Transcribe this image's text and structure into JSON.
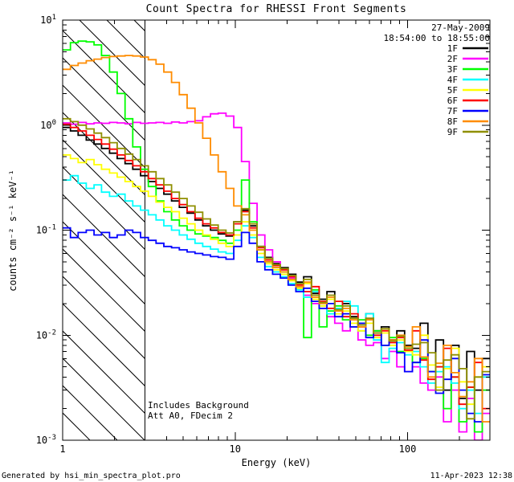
{
  "title": "Count Spectra for RHESSI Front Segments",
  "header": {
    "date": "27-May-2009",
    "time_range": "18:54:00 to 18:55:00"
  },
  "annotations": {
    "line1": "Includes Background",
    "line2": "Att A0, FDecim 2"
  },
  "footer": {
    "left": "Generated by hsi_min_spectra_plot.pro",
    "right": "11-Apr-2023 12:38"
  },
  "chart_data": {
    "type": "line",
    "mode": "histogram-step",
    "background": "#FFFFFF",
    "axis_color": "#000000",
    "legend_position": "top-right",
    "x_axis": {
      "label": "Energy (keV)",
      "scale": "log",
      "range": [
        1,
        300
      ],
      "ticks": [
        1,
        10,
        100
      ]
    },
    "y_axis": {
      "label": "counts cm⁻² s⁻¹ keV⁻¹",
      "scale": "log",
      "range": [
        0.001,
        10
      ],
      "tick_exponents": [
        1,
        0,
        -1,
        -2,
        -3
      ]
    },
    "excluded_region": {
      "from": 1,
      "to": 3,
      "style": "hatched"
    },
    "bin_edges": [
      1.0,
      1.11,
      1.23,
      1.37,
      1.52,
      1.68,
      1.87,
      2.07,
      2.3,
      2.55,
      2.83,
      3.14,
      3.48,
      3.86,
      4.28,
      4.75,
      5.27,
      5.85,
      6.49,
      7.2,
      7.98,
      8.85,
      9.82,
      10.89,
      12.08,
      13.4,
      14.87,
      16.49,
      18.29,
      20.29,
      22.51,
      24.97,
      27.7,
      30.72,
      34.08,
      37.8,
      41.93,
      46.51,
      51.59,
      57.22,
      63.47,
      70.41,
      78.1,
      86.63,
      96.09,
      106.59,
      118.23,
      131.14,
      145.46,
      161.35,
      178.98,
      198.52,
      220.2,
      244.25,
      270.93,
      300.0
    ],
    "series": [
      {
        "name": "1F",
        "color": "#000000",
        "values": [
          0.95,
          0.88,
          0.8,
          0.72,
          0.66,
          0.6,
          0.54,
          0.48,
          0.43,
          0.38,
          0.33,
          0.29,
          0.25,
          0.22,
          0.19,
          0.165,
          0.145,
          0.125,
          0.11,
          0.1,
          0.092,
          0.088,
          0.12,
          0.155,
          0.11,
          0.07,
          0.055,
          0.048,
          0.044,
          0.038,
          0.032,
          0.036,
          0.025,
          0.022,
          0.026,
          0.018,
          0.02,
          0.015,
          0.013,
          0.016,
          0.011,
          0.012,
          0.009,
          0.011,
          0.008,
          0.0075,
          0.013,
          0.0045,
          0.009,
          0.003,
          0.008,
          0.0025,
          0.007,
          0.003,
          0.006
        ]
      },
      {
        "name": "2F",
        "color": "#FF00FF",
        "values": [
          1.05,
          1.02,
          1.06,
          1.03,
          1.05,
          1.04,
          1.06,
          1.05,
          1.03,
          1.06,
          1.04,
          1.05,
          1.06,
          1.04,
          1.07,
          1.05,
          1.08,
          1.1,
          1.2,
          1.28,
          1.3,
          1.22,
          0.95,
          0.45,
          0.18,
          0.09,
          0.065,
          0.05,
          0.042,
          0.035,
          0.028,
          0.024,
          0.02,
          0.018,
          0.015,
          0.013,
          0.011,
          0.012,
          0.009,
          0.008,
          0.0085,
          0.006,
          0.007,
          0.005,
          0.0045,
          0.005,
          0.0035,
          0.003,
          0.004,
          0.0015,
          0.003,
          0.0012,
          0.0025,
          0.001,
          0.0018
        ]
      },
      {
        "name": "3F",
        "color": "#00FF00",
        "values": [
          5.2,
          6.1,
          6.3,
          6.2,
          5.8,
          4.6,
          3.2,
          2.0,
          1.15,
          0.62,
          0.38,
          0.26,
          0.19,
          0.15,
          0.125,
          0.11,
          0.1,
          0.092,
          0.088,
          0.085,
          0.08,
          0.075,
          0.1,
          0.3,
          0.12,
          0.065,
          0.05,
          0.044,
          0.04,
          0.034,
          0.028,
          0.0095,
          0.027,
          0.012,
          0.017,
          0.019,
          0.014,
          0.012,
          0.014,
          0.01,
          0.011,
          0.008,
          0.0095,
          0.007,
          0.0075,
          0.0055,
          0.006,
          0.0045,
          0.005,
          0.002,
          0.004,
          0.0015,
          0.0032,
          0.0012,
          0.003
        ]
      },
      {
        "name": "4F",
        "color": "#00FFFF",
        "values": [
          0.3,
          0.33,
          0.28,
          0.25,
          0.27,
          0.23,
          0.21,
          0.22,
          0.19,
          0.17,
          0.155,
          0.14,
          0.125,
          0.11,
          0.1,
          0.09,
          0.082,
          0.075,
          0.07,
          0.066,
          0.062,
          0.06,
          0.08,
          0.11,
          0.085,
          0.055,
          0.045,
          0.04,
          0.036,
          0.031,
          0.027,
          0.023,
          0.026,
          0.019,
          0.016,
          0.018,
          0.021,
          0.019,
          0.011,
          0.016,
          0.009,
          0.0055,
          0.0075,
          0.0085,
          0.0065,
          0.007,
          0.005,
          0.0035,
          0.0045,
          0.005,
          0.0035,
          0.002,
          0.003,
          0.0018,
          0.004
        ]
      },
      {
        "name": "5F",
        "color": "#FFFF00",
        "values": [
          0.52,
          0.48,
          0.44,
          0.47,
          0.42,
          0.38,
          0.35,
          0.32,
          0.29,
          0.26,
          0.235,
          0.21,
          0.185,
          0.165,
          0.15,
          0.13,
          0.115,
          0.1,
          0.09,
          0.082,
          0.075,
          0.07,
          0.09,
          0.12,
          0.09,
          0.06,
          0.048,
          0.042,
          0.038,
          0.033,
          0.028,
          0.031,
          0.022,
          0.019,
          0.022,
          0.016,
          0.017,
          0.013,
          0.011,
          0.013,
          0.0095,
          0.0105,
          0.008,
          0.009,
          0.007,
          0.0065,
          0.01,
          0.0052,
          0.0032,
          0.0048,
          0.0075,
          0.0036,
          0.0022,
          0.004,
          0.005
        ]
      },
      {
        "name": "6F",
        "color": "#FF0000",
        "values": [
          1.02,
          0.95,
          0.88,
          0.8,
          0.73,
          0.66,
          0.59,
          0.52,
          0.46,
          0.41,
          0.36,
          0.31,
          0.27,
          0.235,
          0.2,
          0.175,
          0.15,
          0.13,
          0.115,
          0.105,
          0.095,
          0.09,
          0.115,
          0.15,
          0.105,
          0.068,
          0.052,
          0.046,
          0.042,
          0.036,
          0.03,
          0.026,
          0.029,
          0.021,
          0.018,
          0.021,
          0.015,
          0.016,
          0.012,
          0.014,
          0.01,
          0.011,
          0.0085,
          0.0095,
          0.0072,
          0.011,
          0.0058,
          0.0038,
          0.005,
          0.0075,
          0.004,
          0.0022,
          0.0032,
          0.0055,
          0.002
        ]
      },
      {
        "name": "7F",
        "color": "#0000FF",
        "values": [
          0.105,
          0.085,
          0.095,
          0.1,
          0.09,
          0.095,
          0.085,
          0.09,
          0.1,
          0.095,
          0.085,
          0.08,
          0.075,
          0.07,
          0.068,
          0.065,
          0.062,
          0.06,
          0.058,
          0.056,
          0.055,
          0.053,
          0.07,
          0.095,
          0.075,
          0.05,
          0.042,
          0.038,
          0.035,
          0.03,
          0.026,
          0.028,
          0.021,
          0.018,
          0.02,
          0.015,
          0.016,
          0.012,
          0.013,
          0.0095,
          0.0105,
          0.008,
          0.009,
          0.0068,
          0.0045,
          0.0055,
          0.009,
          0.0045,
          0.0028,
          0.0038,
          0.006,
          0.003,
          0.0018,
          0.0015,
          0.0042
        ]
      },
      {
        "name": "8F",
        "color": "#FF8C00",
        "values": [
          3.4,
          3.7,
          3.9,
          4.1,
          4.25,
          4.4,
          4.5,
          4.55,
          4.6,
          4.55,
          4.45,
          4.2,
          3.8,
          3.2,
          2.55,
          1.95,
          1.45,
          1.05,
          0.75,
          0.52,
          0.36,
          0.25,
          0.17,
          0.14,
          0.1,
          0.065,
          0.05,
          0.044,
          0.04,
          0.034,
          0.029,
          0.032,
          0.023,
          0.02,
          0.023,
          0.017,
          0.018,
          0.014,
          0.012,
          0.014,
          0.0105,
          0.0115,
          0.009,
          0.01,
          0.0078,
          0.012,
          0.0062,
          0.004,
          0.0054,
          0.008,
          0.0044,
          0.0026,
          0.0036,
          0.006,
          0.0015
        ]
      },
      {
        "name": "9F",
        "color": "#8F8F00",
        "values": [
          1.15,
          1.08,
          1.0,
          0.92,
          0.84,
          0.76,
          0.68,
          0.6,
          0.53,
          0.47,
          0.41,
          0.36,
          0.31,
          0.27,
          0.23,
          0.2,
          0.17,
          0.148,
          0.128,
          0.112,
          0.1,
          0.094,
          0.12,
          0.16,
          0.115,
          0.07,
          0.054,
          0.047,
          0.043,
          0.037,
          0.031,
          0.034,
          0.024,
          0.0205,
          0.024,
          0.0175,
          0.019,
          0.0145,
          0.0125,
          0.0145,
          0.0105,
          0.0115,
          0.0088,
          0.0098,
          0.0075,
          0.0082,
          0.0085,
          0.0068,
          0.003,
          0.0058,
          0.0065,
          0.0048,
          0.0016,
          0.004,
          0.0045
        ]
      }
    ]
  }
}
